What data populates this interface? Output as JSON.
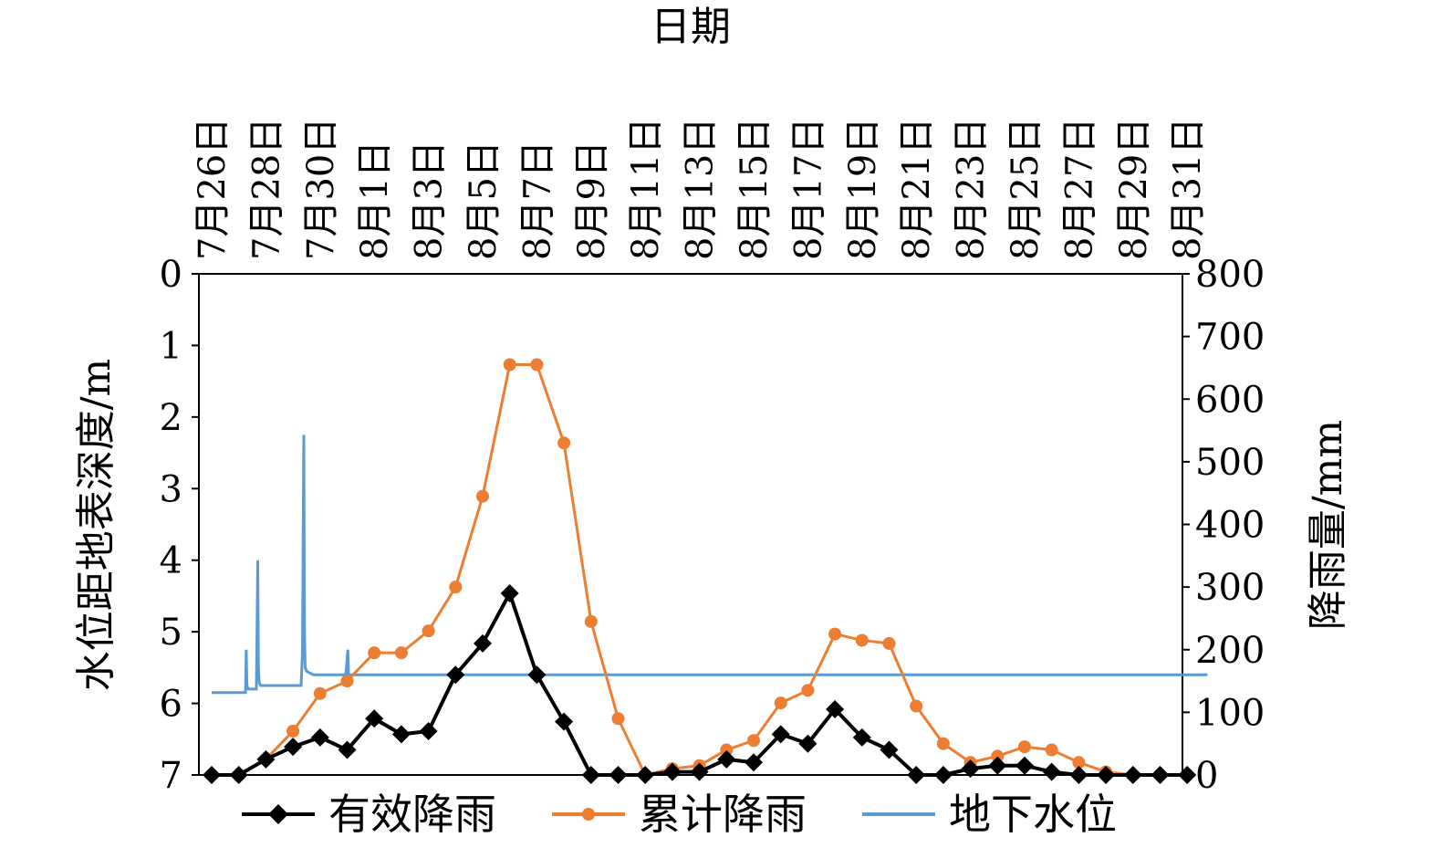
{
  "chart_data": {
    "type": "line",
    "xlabel": "日期",
    "ylabel_left": "水位距地表深度/m",
    "ylabel_right": "降雨量/mm",
    "ylim_left": [
      0,
      7
    ],
    "ylim_left_inverted": true,
    "ylim_right": [
      0,
      800
    ],
    "yticks_left": [
      "0",
      "1",
      "2",
      "3",
      "4",
      "5",
      "6",
      "7"
    ],
    "yticks_right": [
      "800",
      "700",
      "600",
      "500",
      "400",
      "300",
      "200",
      "100",
      "0"
    ],
    "x_tick_labels": [
      "7月26日",
      "7月28日",
      "7月30日",
      "8月1日",
      "8月3日",
      "8月5日",
      "8月7日",
      "8月9日",
      "8月11日",
      "8月13日",
      "8月15日",
      "8月17日",
      "8月19日",
      "8月21日",
      "8月23日",
      "8月25日",
      "8月27日",
      "8月29日",
      "8月31日"
    ],
    "x_day_range": [
      "7月26日",
      "8月31日"
    ],
    "legend_position": "bottom",
    "legend": [
      "有效降雨",
      "累计降雨",
      "地下水位"
    ],
    "series": [
      {
        "name": "有效降雨",
        "axis": "right",
        "marker": "diamond",
        "color": "#000000",
        "x": [
          "7月26日",
          "7月27日",
          "7月28日",
          "7月29日",
          "7月30日",
          "7月31日",
          "8月1日",
          "8月2日",
          "8月3日",
          "8月4日",
          "8月5日",
          "8月6日",
          "8月7日",
          "8月8日",
          "8月9日",
          "8月10日",
          "8月11日",
          "8月12日",
          "8月13日",
          "8月14日",
          "8月15日",
          "8月16日",
          "8月17日",
          "8月18日",
          "8月19日",
          "8月20日",
          "8月21日",
          "8月22日",
          "8月23日",
          "8月24日",
          "8月25日",
          "8月26日",
          "8月27日",
          "8月28日",
          "8月29日",
          "8月30日",
          "8月31日"
        ],
        "values": [
          0,
          0,
          25,
          45,
          60,
          40,
          90,
          65,
          70,
          160,
          210,
          290,
          160,
          85,
          0,
          0,
          0,
          5,
          5,
          25,
          20,
          65,
          50,
          105,
          60,
          40,
          0,
          0,
          10,
          15,
          15,
          5,
          0,
          0,
          0,
          0,
          0
        ]
      },
      {
        "name": "累计降雨",
        "axis": "right",
        "marker": "circle",
        "color": "#ed7d31",
        "x": [
          "7月26日",
          "7月27日",
          "7月28日",
          "7月29日",
          "7月30日",
          "7月31日",
          "8月1日",
          "8月2日",
          "8月3日",
          "8月4日",
          "8月5日",
          "8月6日",
          "8月7日",
          "8月8日",
          "8月9日",
          "8月10日",
          "8月11日",
          "8月12日",
          "8月13日",
          "8月14日",
          "8月15日",
          "8月16日",
          "8月17日",
          "8月18日",
          "8月19日",
          "8月20日",
          "8月21日",
          "8月22日",
          "8月23日",
          "8月24日",
          "8月25日",
          "8月26日",
          "8月27日",
          "8月28日",
          "8月29日",
          "8月30日",
          "8月31日"
        ],
        "values": [
          0,
          0,
          25,
          70,
          130,
          150,
          195,
          195,
          230,
          300,
          445,
          655,
          655,
          530,
          245,
          90,
          0,
          10,
          15,
          40,
          55,
          115,
          135,
          225,
          215,
          210,
          110,
          50,
          20,
          30,
          45,
          40,
          20,
          5,
          0,
          0,
          0
        ]
      },
      {
        "name": "地下水位",
        "axis": "left",
        "color": "#5b9bd5",
        "x_days_from_start": [
          0,
          2.5,
          2.55,
          2.6,
          2.7,
          3.3,
          3.4,
          3.45,
          3.5,
          3.6,
          3.75,
          4.0,
          5.0,
          6.0,
          6.6,
          6.7,
          6.8,
          6.85,
          6.9,
          7.0,
          7.5,
          9.0,
          9.9,
          10.05,
          10.1,
          10.2,
          10.4,
          11.0,
          12.0,
          13.0,
          14.0,
          15.0,
          16.0,
          16.5,
          17.0,
          17.5,
          18.0,
          18.5,
          19.0,
          19.4,
          19.8,
          20.0,
          21.0,
          21.5,
          22.0,
          22.5,
          23.0,
          24.0,
          25.0,
          26.0,
          26.5,
          27.0,
          27.5,
          28.0,
          28.1,
          28.2,
          28.25,
          28.3,
          28.4,
          28.6,
          29.0,
          30.0,
          31.0,
          32.0,
          33.0,
          34.0,
          35.0,
          36.0,
          37.0,
          38.0,
          39.0,
          40.0,
          41.0,
          42.0,
          43.0,
          44.0,
          45.0,
          46.0,
          47.0,
          48.0,
          49.0,
          50.0,
          51.0,
          52.0,
          53.0,
          54.0,
          55.0,
          56.0,
          57.0,
          58.0,
          59.0,
          60.0,
          61.0,
          62.0,
          63.0,
          64.0,
          65.0,
          66.0,
          67.0,
          68.0,
          69.0,
          70.0,
          71.0,
          72.0,
          73.0,
          73.5
        ],
        "values": [
          5.85,
          5.85,
          5.25,
          5.75,
          5.8,
          5.8,
          4.0,
          5.5,
          5.7,
          5.75,
          5.75,
          5.75,
          5.75,
          5.75,
          5.75,
          5.3,
          2.25,
          5.0,
          5.5,
          5.55,
          5.6,
          5.6,
          5.6,
          5.25,
          5.6,
          5.6,
          5.6,
          5.6,
          5.6,
          5.6,
          5.6,
          5.6,
          5.6,
          5.6,
          5.6,
          5.6,
          5.6,
          5.6,
          5.6,
          5.6,
          5.6,
          5.6,
          5.6,
          5.6,
          5.6,
          5.6,
          5.6,
          5.6,
          5.6,
          5.6,
          5.6,
          5.6,
          5.6,
          5.6,
          5.6,
          5.6,
          5.6,
          5.6,
          5.6,
          5.6,
          5.6,
          5.6,
          5.6,
          5.6,
          5.6,
          5.6,
          5.6,
          5.6,
          5.6,
          5.6,
          5.6,
          5.6,
          5.6,
          5.6,
          5.6,
          5.6,
          5.6,
          5.6,
          5.6,
          5.6,
          5.6,
          5.6,
          5.6,
          5.6,
          5.6,
          5.6,
          5.6,
          5.6,
          5.6,
          5.6,
          5.6,
          5.6,
          5.6,
          5.6,
          5.6,
          5.6,
          5.6,
          5.6,
          5.6,
          5.6,
          5.6,
          5.6,
          5.6,
          5.6,
          5.6,
          5.6
        ]
      }
    ]
  }
}
